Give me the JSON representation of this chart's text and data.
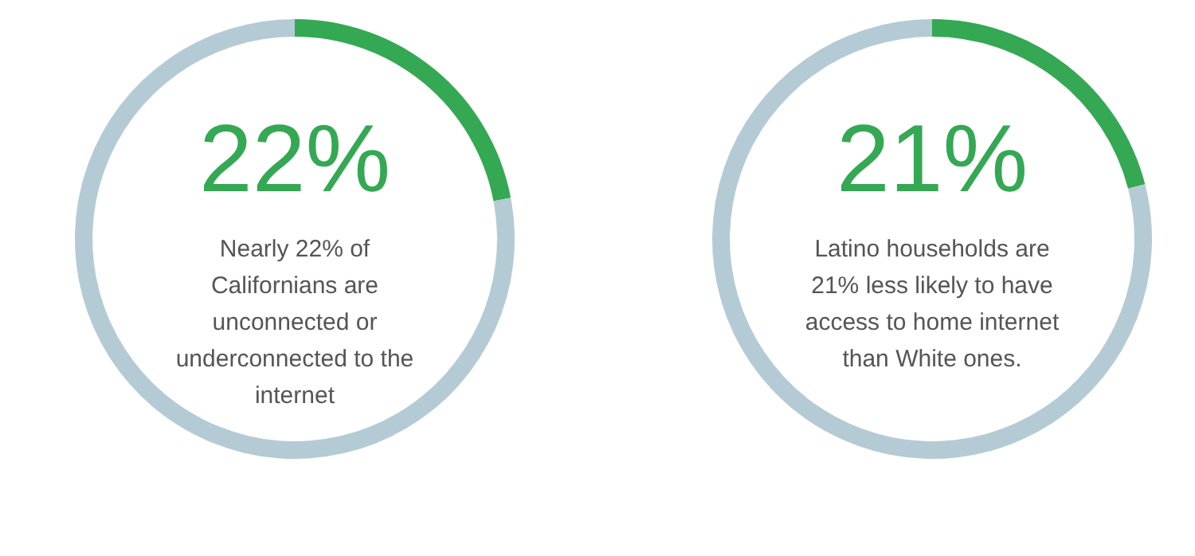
{
  "chart_data": [
    {
      "type": "donut",
      "title": "22%",
      "annotations": [
        "Nearly 22% of Californians are unconnected or underconnected to the internet"
      ],
      "categories": [
        null,
        null
      ],
      "values": [
        22,
        78
      ],
      "colors": [
        "#34a853",
        "#b4cbd5"
      ]
    },
    {
      "type": "donut",
      "title": "21%",
      "annotations": [
        "Latino households are 21% less likely to have access to home internet than White ones."
      ],
      "categories": [
        null,
        null
      ],
      "values": [
        21,
        79
      ],
      "colors": [
        "#34a853",
        "#b4cbd5"
      ]
    }
  ]
}
